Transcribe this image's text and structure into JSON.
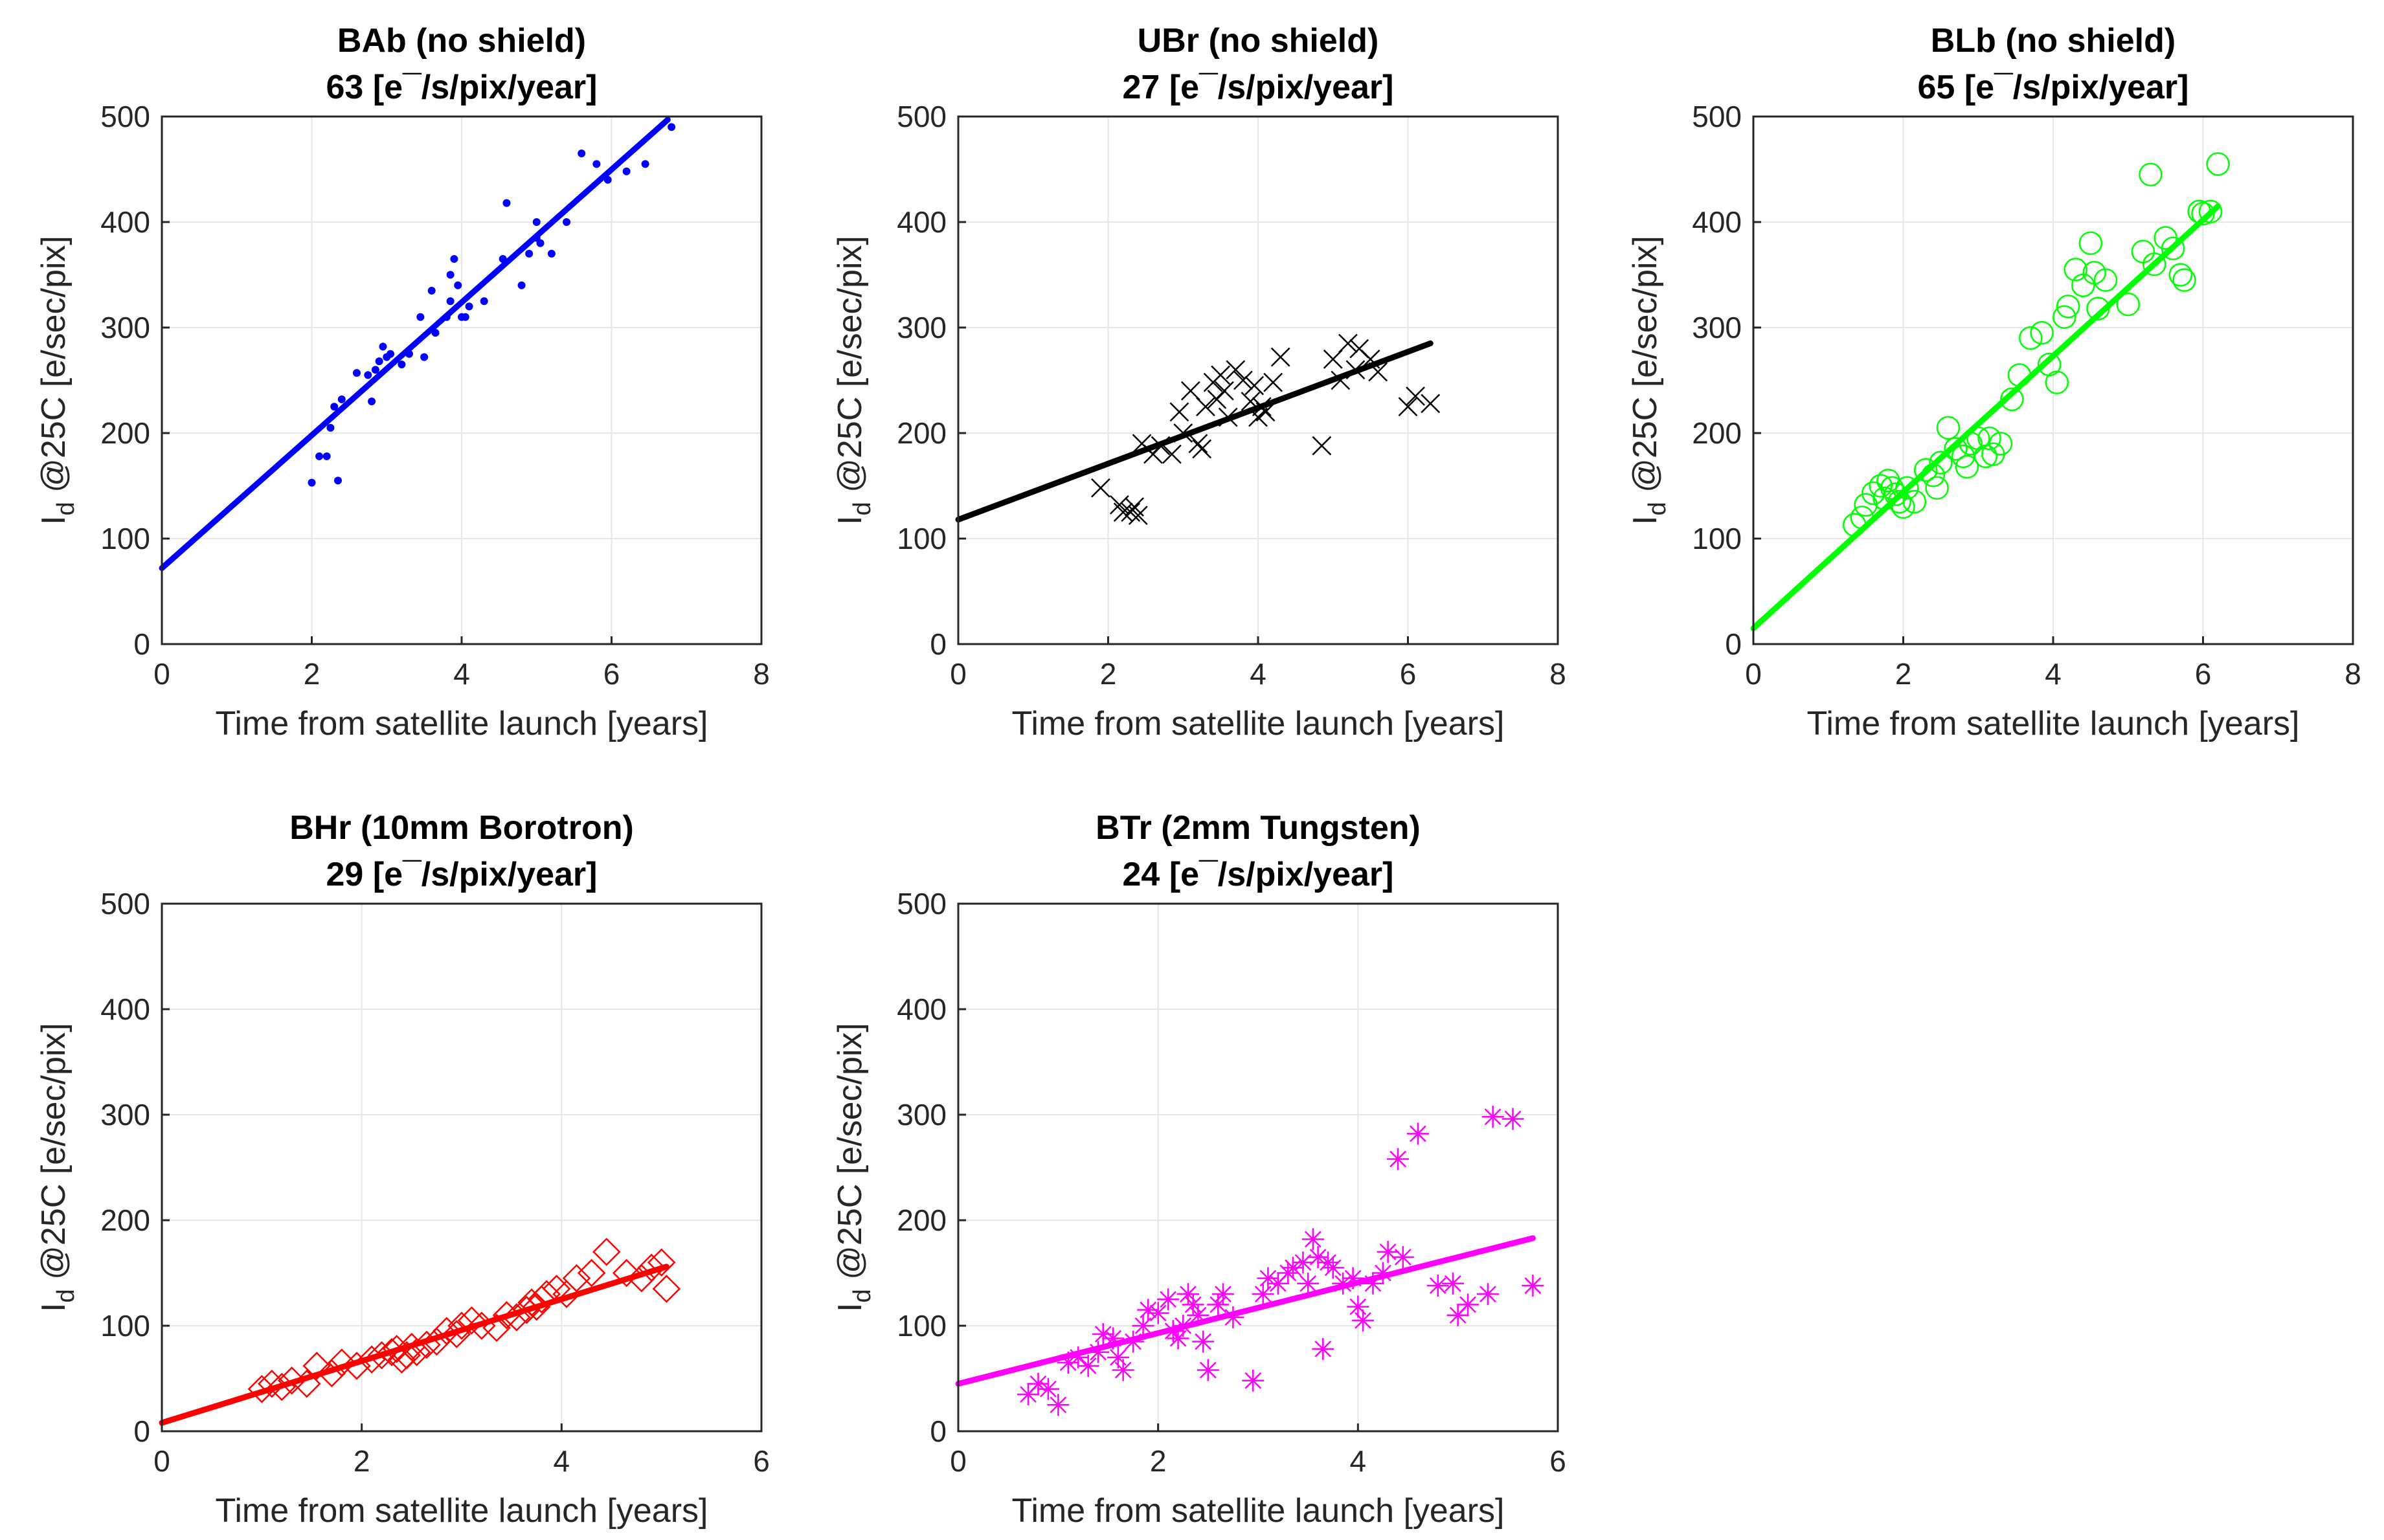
{
  "chart_data": [
    {
      "type": "scatter",
      "title": "BAb (no shield)",
      "rate_value": "63",
      "rate_units": "[e¯/s/pix/year]",
      "xlabel": "Time from satellite launch [years]",
      "ylabel_main": "I",
      "ylabel_sub": "d",
      "ylabel_rest": " @25C [e/sec/pix]",
      "xlim": [
        0,
        8
      ],
      "ylim": [
        0,
        500
      ],
      "xticks": [
        0,
        2,
        4,
        6,
        8
      ],
      "yticks": [
        0,
        100,
        200,
        300,
        400,
        500
      ],
      "grid": true,
      "color": "#0000ff",
      "marker": "dot",
      "fit": {
        "x": [
          0,
          6.75
        ],
        "y": [
          72,
          497
        ]
      },
      "points": [
        [
          2.0,
          153
        ],
        [
          2.1,
          178
        ],
        [
          2.2,
          178
        ],
        [
          2.25,
          205
        ],
        [
          2.3,
          225
        ],
        [
          2.35,
          155
        ],
        [
          2.4,
          232
        ],
        [
          2.6,
          257
        ],
        [
          2.75,
          255
        ],
        [
          2.8,
          230
        ],
        [
          2.85,
          260
        ],
        [
          2.9,
          268
        ],
        [
          2.95,
          282
        ],
        [
          3.0,
          272
        ],
        [
          3.05,
          275
        ],
        [
          3.2,
          265
        ],
        [
          3.3,
          275
        ],
        [
          3.45,
          310
        ],
        [
          3.5,
          272
        ],
        [
          3.6,
          335
        ],
        [
          3.65,
          295
        ],
        [
          3.8,
          310
        ],
        [
          3.85,
          325
        ],
        [
          3.85,
          350
        ],
        [
          3.9,
          365
        ],
        [
          3.95,
          340
        ],
        [
          4.0,
          310
        ],
        [
          4.05,
          310
        ],
        [
          4.1,
          320
        ],
        [
          4.3,
          325
        ],
        [
          4.55,
          365
        ],
        [
          4.6,
          418
        ],
        [
          4.8,
          340
        ],
        [
          4.9,
          370
        ],
        [
          5.0,
          400
        ],
        [
          5.0,
          385
        ],
        [
          5.05,
          380
        ],
        [
          5.2,
          370
        ],
        [
          5.4,
          400
        ],
        [
          5.6,
          465
        ],
        [
          5.8,
          455
        ],
        [
          5.95,
          440
        ],
        [
          6.2,
          448
        ],
        [
          6.45,
          455
        ],
        [
          6.8,
          490
        ]
      ]
    },
    {
      "type": "scatter",
      "title": "UBr (no shield)",
      "rate_value": "27",
      "rate_units": "[e¯/s/pix/year]",
      "xlabel": "Time from satellite launch [years]",
      "ylabel_main": "I",
      "ylabel_sub": "d",
      "ylabel_rest": " @25C [e/sec/pix]",
      "xlim": [
        0,
        8
      ],
      "ylim": [
        0,
        500
      ],
      "xticks": [
        0,
        2,
        4,
        6,
        8
      ],
      "yticks": [
        0,
        100,
        200,
        300,
        400,
        500
      ],
      "grid": true,
      "color": "#000000",
      "marker": "x",
      "fit": {
        "x": [
          0,
          6.3
        ],
        "y": [
          118,
          285
        ]
      },
      "points": [
        [
          1.9,
          148
        ],
        [
          2.15,
          132
        ],
        [
          2.2,
          125
        ],
        [
          2.3,
          125
        ],
        [
          2.35,
          130
        ],
        [
          2.4,
          122
        ],
        [
          2.45,
          190
        ],
        [
          2.6,
          180
        ],
        [
          2.7,
          188
        ],
        [
          2.85,
          180
        ],
        [
          2.95,
          220
        ],
        [
          3.0,
          200
        ],
        [
          3.1,
          240
        ],
        [
          3.2,
          190
        ],
        [
          3.25,
          185
        ],
        [
          3.3,
          225
        ],
        [
          3.4,
          248
        ],
        [
          3.45,
          232
        ],
        [
          3.5,
          255
        ],
        [
          3.55,
          240
        ],
        [
          3.6,
          215
        ],
        [
          3.7,
          260
        ],
        [
          3.8,
          250
        ],
        [
          3.9,
          230
        ],
        [
          3.95,
          245
        ],
        [
          4.0,
          215
        ],
        [
          4.05,
          225
        ],
        [
          4.1,
          220
        ],
        [
          4.2,
          248
        ],
        [
          4.3,
          272
        ],
        [
          4.85,
          188
        ],
        [
          5.0,
          270
        ],
        [
          5.1,
          250
        ],
        [
          5.2,
          285
        ],
        [
          5.3,
          260
        ],
        [
          5.35,
          280
        ],
        [
          5.5,
          270
        ],
        [
          5.6,
          258
        ],
        [
          6.0,
          225
        ],
        [
          6.1,
          235
        ],
        [
          6.3,
          228
        ]
      ]
    },
    {
      "type": "scatter",
      "title": "BLb (no shield)",
      "rate_value": "65",
      "rate_units": "[e¯/s/pix/year]",
      "xlabel": "Time from satellite launch [years]",
      "ylabel_main": "I",
      "ylabel_sub": "d",
      "ylabel_rest": " @25C [e/sec/pix]",
      "xlim": [
        0,
        8
      ],
      "ylim": [
        0,
        500
      ],
      "xticks": [
        0,
        2,
        4,
        6,
        8
      ],
      "yticks": [
        0,
        100,
        200,
        300,
        400,
        500
      ],
      "grid": true,
      "color": "#00ff00",
      "marker": "circle",
      "fit": {
        "x": [
          0,
          6.2
        ],
        "y": [
          15,
          415
        ]
      },
      "points": [
        [
          1.35,
          113
        ],
        [
          1.45,
          120
        ],
        [
          1.5,
          132
        ],
        [
          1.6,
          143
        ],
        [
          1.7,
          150
        ],
        [
          1.75,
          138
        ],
        [
          1.8,
          155
        ],
        [
          1.85,
          148
        ],
        [
          1.9,
          142
        ],
        [
          1.95,
          135
        ],
        [
          2.0,
          130
        ],
        [
          2.05,
          148
        ],
        [
          2.15,
          135
        ],
        [
          2.3,
          165
        ],
        [
          2.4,
          160
        ],
        [
          2.45,
          148
        ],
        [
          2.5,
          172
        ],
        [
          2.6,
          205
        ],
        [
          2.7,
          185
        ],
        [
          2.8,
          178
        ],
        [
          2.85,
          168
        ],
        [
          2.9,
          190
        ],
        [
          3.0,
          195
        ],
        [
          3.1,
          178
        ],
        [
          3.15,
          195
        ],
        [
          3.2,
          180
        ],
        [
          3.3,
          190
        ],
        [
          3.45,
          232
        ],
        [
          3.55,
          255
        ],
        [
          3.7,
          290
        ],
        [
          3.85,
          295
        ],
        [
          3.95,
          265
        ],
        [
          4.05,
          248
        ],
        [
          4.15,
          310
        ],
        [
          4.2,
          320
        ],
        [
          4.3,
          355
        ],
        [
          4.4,
          340
        ],
        [
          4.5,
          380
        ],
        [
          4.55,
          352
        ],
        [
          4.6,
          318
        ],
        [
          4.7,
          345
        ],
        [
          5.0,
          322
        ],
        [
          5.2,
          372
        ],
        [
          5.3,
          445
        ],
        [
          5.35,
          360
        ],
        [
          5.5,
          385
        ],
        [
          5.6,
          375
        ],
        [
          5.7,
          350
        ],
        [
          5.75,
          345
        ],
        [
          5.95,
          410
        ],
        [
          6.0,
          408
        ],
        [
          6.1,
          410
        ],
        [
          6.2,
          455
        ]
      ]
    },
    {
      "type": "scatter",
      "title": "BHr (10mm Borotron)",
      "rate_value": "29",
      "rate_units": "[e¯/s/pix/year]",
      "xlabel": "Time from satellite launch [years]",
      "ylabel_main": "I",
      "ylabel_sub": "d",
      "ylabel_rest": " @25C [e/sec/pix]",
      "xlim": [
        0,
        6
      ],
      "ylim": [
        0,
        500
      ],
      "xticks": [
        0,
        2,
        4,
        6
      ],
      "yticks": [
        0,
        100,
        200,
        300,
        400,
        500
      ],
      "grid": true,
      "color": "#ff0000",
      "marker": "diamond",
      "fit": {
        "x": [
          0,
          5.05
        ],
        "y": [
          8,
          156
        ]
      },
      "points": [
        [
          1.0,
          40
        ],
        [
          1.1,
          45
        ],
        [
          1.2,
          42
        ],
        [
          1.3,
          48
        ],
        [
          1.45,
          45
        ],
        [
          1.55,
          62
        ],
        [
          1.7,
          55
        ],
        [
          1.8,
          65
        ],
        [
          1.95,
          62
        ],
        [
          2.1,
          68
        ],
        [
          2.2,
          72
        ],
        [
          2.3,
          75
        ],
        [
          2.35,
          78
        ],
        [
          2.4,
          68
        ],
        [
          2.45,
          72
        ],
        [
          2.5,
          80
        ],
        [
          2.55,
          75
        ],
        [
          2.65,
          82
        ],
        [
          2.75,
          85
        ],
        [
          2.85,
          95
        ],
        [
          2.95,
          92
        ],
        [
          3.0,
          100
        ],
        [
          3.1,
          105
        ],
        [
          3.2,
          100
        ],
        [
          3.35,
          98
        ],
        [
          3.45,
          110
        ],
        [
          3.55,
          108
        ],
        [
          3.65,
          115
        ],
        [
          3.7,
          122
        ],
        [
          3.75,
          118
        ],
        [
          3.8,
          125
        ],
        [
          3.85,
          130
        ],
        [
          3.95,
          135
        ],
        [
          4.05,
          130
        ],
        [
          4.15,
          145
        ],
        [
          4.3,
          150
        ],
        [
          4.45,
          170
        ],
        [
          4.65,
          150
        ],
        [
          4.8,
          145
        ],
        [
          4.9,
          155
        ],
        [
          5.0,
          160
        ],
        [
          5.05,
          135
        ]
      ]
    },
    {
      "type": "scatter",
      "title": "BTr (2mm Tungsten)",
      "rate_value": "24",
      "rate_units": "[e¯/s/pix/year]",
      "xlabel": "Time from satellite launch [years]",
      "ylabel_main": "I",
      "ylabel_sub": "d",
      "ylabel_rest": " @25C [e/sec/pix]",
      "xlim": [
        0,
        6
      ],
      "ylim": [
        0,
        500
      ],
      "xticks": [
        0,
        2,
        4,
        6
      ],
      "yticks": [
        0,
        100,
        200,
        300,
        400,
        500
      ],
      "grid": true,
      "color": "#ff00ff",
      "marker": "star",
      "fit": {
        "x": [
          0,
          5.75
        ],
        "y": [
          45,
          183
        ]
      },
      "points": [
        [
          0.7,
          35
        ],
        [
          0.8,
          45
        ],
        [
          0.9,
          40
        ],
        [
          1.0,
          25
        ],
        [
          1.1,
          65
        ],
        [
          1.2,
          70
        ],
        [
          1.3,
          62
        ],
        [
          1.4,
          75
        ],
        [
          1.45,
          92
        ],
        [
          1.55,
          88
        ],
        [
          1.6,
          70
        ],
        [
          1.65,
          58
        ],
        [
          1.75,
          85
        ],
        [
          1.85,
          100
        ],
        [
          1.9,
          115
        ],
        [
          2.0,
          112
        ],
        [
          2.1,
          125
        ],
        [
          2.15,
          95
        ],
        [
          2.2,
          88
        ],
        [
          2.25,
          100
        ],
        [
          2.3,
          130
        ],
        [
          2.35,
          120
        ],
        [
          2.4,
          110
        ],
        [
          2.45,
          85
        ],
        [
          2.5,
          58
        ],
        [
          2.6,
          120
        ],
        [
          2.65,
          130
        ],
        [
          2.75,
          108
        ],
        [
          2.95,
          48
        ],
        [
          3.05,
          130
        ],
        [
          3.1,
          145
        ],
        [
          3.2,
          140
        ],
        [
          3.3,
          150
        ],
        [
          3.35,
          155
        ],
        [
          3.45,
          160
        ],
        [
          3.5,
          140
        ],
        [
          3.55,
          182
        ],
        [
          3.6,
          165
        ],
        [
          3.65,
          78
        ],
        [
          3.7,
          160
        ],
        [
          3.75,
          155
        ],
        [
          3.85,
          140
        ],
        [
          3.95,
          145
        ],
        [
          4.0,
          118
        ],
        [
          4.05,
          105
        ],
        [
          4.15,
          140
        ],
        [
          4.25,
          150
        ],
        [
          4.3,
          170
        ],
        [
          4.4,
          258
        ],
        [
          4.45,
          165
        ],
        [
          4.6,
          282
        ],
        [
          4.8,
          138
        ],
        [
          4.95,
          140
        ],
        [
          5.0,
          110
        ],
        [
          5.1,
          120
        ],
        [
          5.3,
          130
        ],
        [
          5.35,
          298
        ],
        [
          5.55,
          296
        ],
        [
          5.75,
          138
        ]
      ]
    }
  ]
}
